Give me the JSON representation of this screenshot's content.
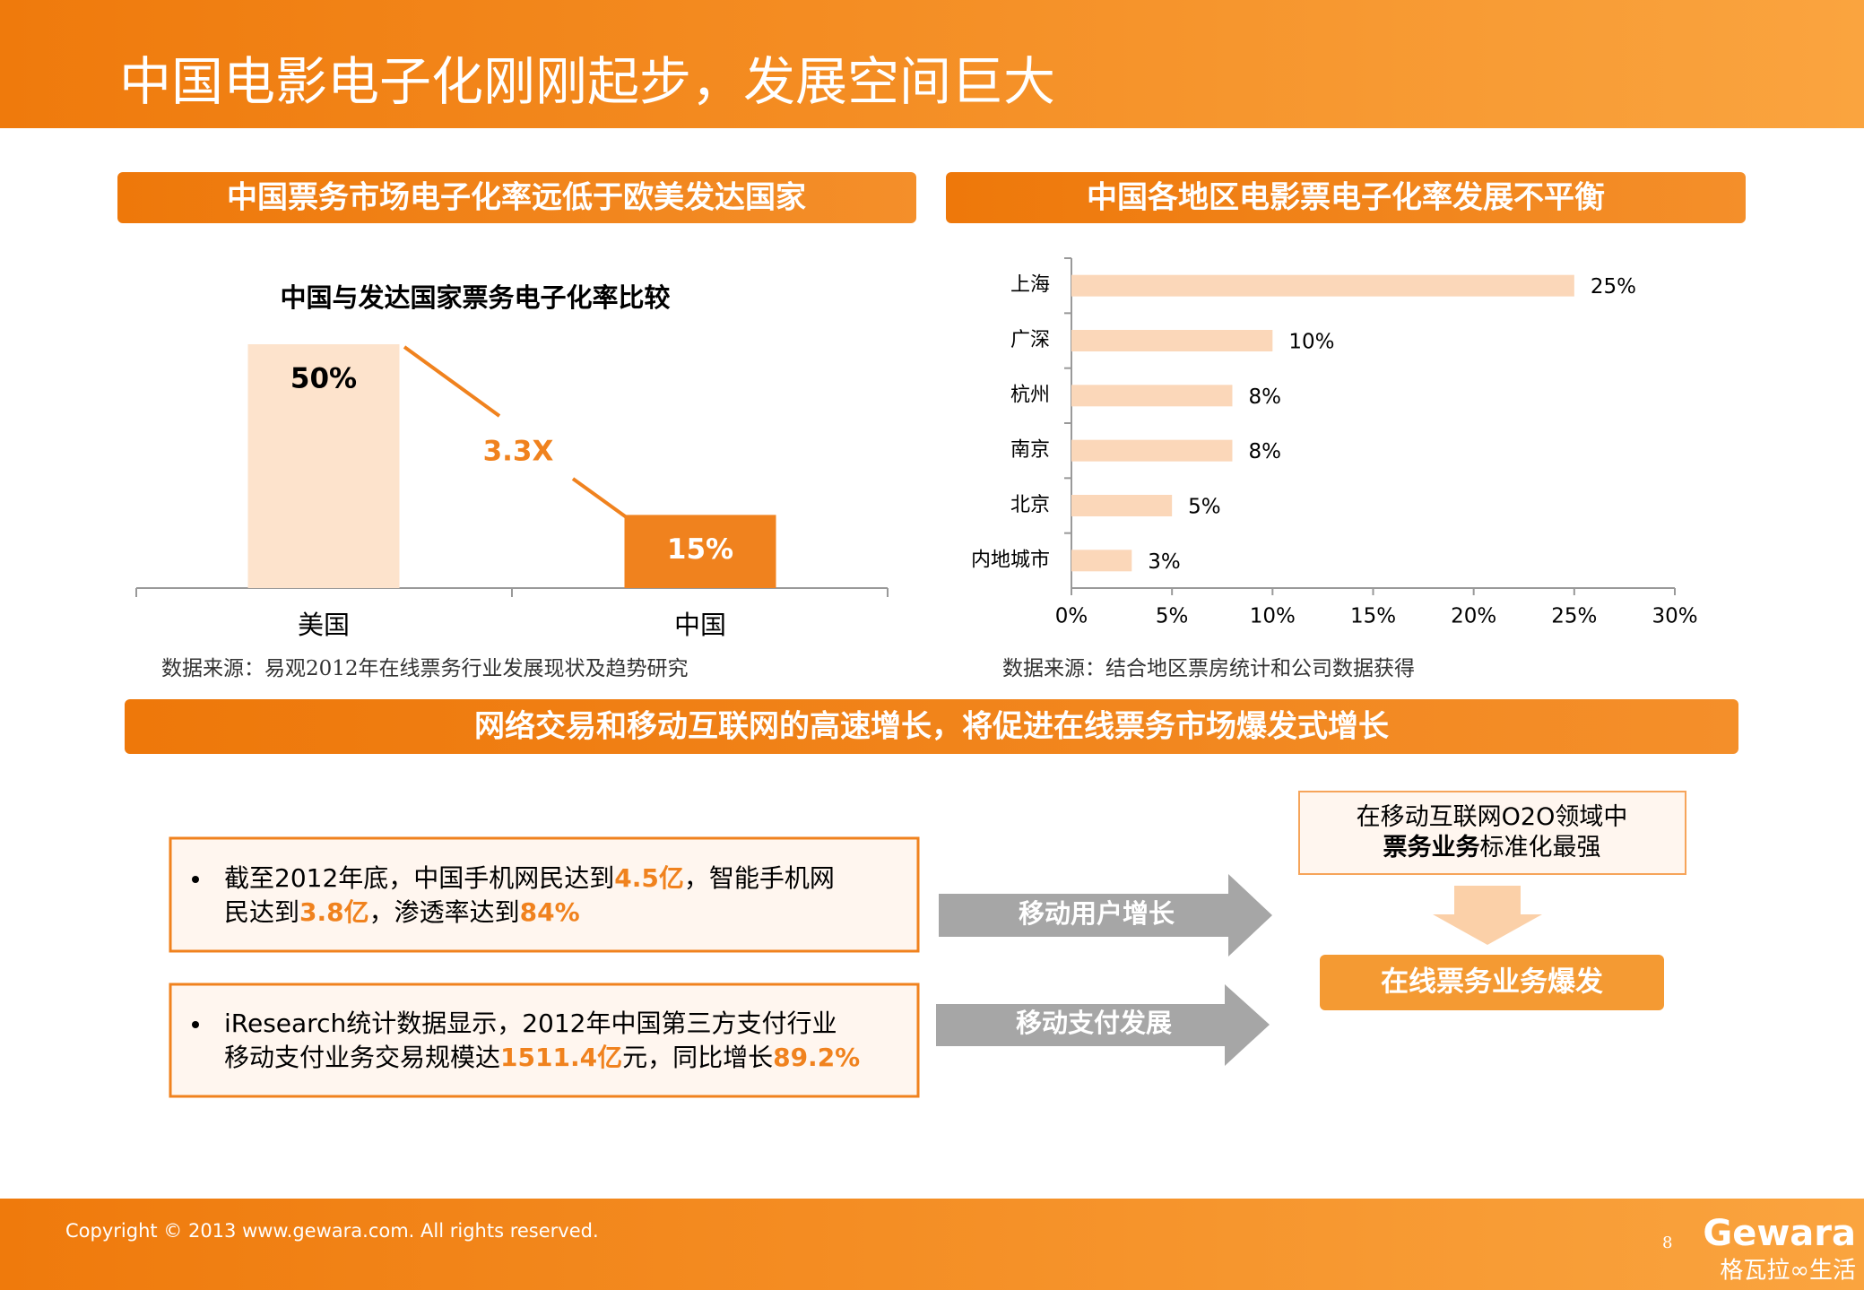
{
  "header": {
    "title": "中国电影电子化刚刚起步，发展空间巨大"
  },
  "sections": [
    "中国票务市场电子化率远低于欧美发达国家",
    "中国各地区电影票电子化率发展不平衡",
    "网络交易和移动互联网的高速增长，将促进在线票务市场爆发式增长"
  ],
  "chart_data": [
    {
      "type": "bar",
      "title": "中国与发达国家票务电子化率比较",
      "categories": [
        "美国",
        "中国"
      ],
      "values": [
        50,
        15
      ],
      "value_labels": [
        "50%",
        "15%"
      ],
      "colors": [
        "#fde3cc",
        "#f0821e"
      ],
      "label_colors": [
        "#000000",
        "#ffffff"
      ],
      "annotation": "3.3X",
      "source": "数据来源：易观2012年在线票务行业发展现状及趋势研究"
    },
    {
      "type": "barh",
      "categories": [
        "上海",
        "广深",
        "杭州",
        "南京",
        "北京",
        "内地城市"
      ],
      "values": [
        25,
        10,
        8,
        8,
        5,
        3
      ],
      "value_labels": [
        "25%",
        "10%",
        "8%",
        "8%",
        "5%",
        "3%"
      ],
      "color": "#fbd7b9",
      "xlim": [
        0,
        30
      ],
      "xticks": [
        {
          "value": 0,
          "label": "0%"
        },
        {
          "value": 5,
          "label": "5%"
        },
        {
          "value": 10,
          "label": "10%"
        },
        {
          "value": 15,
          "label": "15%"
        },
        {
          "value": 20,
          "label": "20%"
        },
        {
          "value": 25,
          "label": "25%"
        },
        {
          "value": 30,
          "label": "30%"
        }
      ],
      "source": "数据来源：结合地区票房统计和公司数据获得"
    }
  ],
  "bottom": {
    "bullets": [
      [
        [
          "截至2012年底，中国手机网民达到",
          "4.5亿",
          "，智能手机网"
        ],
        [
          "民达到",
          "3.8亿",
          "，渗透率达到",
          "84%"
        ]
      ],
      [
        [
          "iResearch统计数据显示，2012年中国第三方支付行业"
        ],
        [
          "移动支付业务交易规模达",
          "1511.4亿",
          "元，同比增长",
          "89.2%"
        ]
      ]
    ],
    "arrows": [
      "移动用户增长",
      "移动支付发展"
    ],
    "result_box": [
      [
        "在移动互联网O2O领域中"
      ],
      [
        "票务业务",
        "标准化最强"
      ]
    ],
    "outcome": "在线票务业务爆发"
  },
  "footer": {
    "copyright": "Copyright © 2013 www.gewara.com. All rights reserved.",
    "page": "8",
    "logo": "Gewara",
    "logo_sub": "格瓦拉∞生活"
  }
}
